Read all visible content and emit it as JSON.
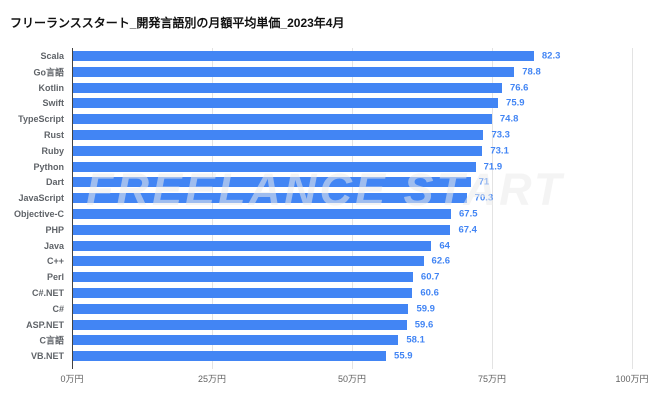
{
  "title": "フリーランススタート_開発言語別の月額平均単価_2023年4月",
  "watermark": "FREELANCE START",
  "colors": {
    "bar": "#4285f4",
    "value_label": "#4285f4",
    "category_label": "#5f6368",
    "tick_label": "#616161",
    "gridline": "#e3e3e3",
    "axis_line": "#424242",
    "title": "#111111",
    "watermark": "#ececec",
    "background": "#ffffff"
  },
  "chart_data": {
    "type": "bar",
    "orientation": "horizontal",
    "title": "フリーランススタート_開発言語別の月額平均単価_2023年4月",
    "xlabel": "",
    "ylabel": "",
    "unit": "万円",
    "xlim": [
      0,
      100
    ],
    "grid": true,
    "legend": "none",
    "categories": [
      "Scala",
      "Go言語",
      "Kotlin",
      "Swift",
      "TypeScript",
      "Rust",
      "Ruby",
      "Python",
      "Dart",
      "JavaScript",
      "Objective-C",
      "PHP",
      "Java",
      "C++",
      "Perl",
      "C#.NET",
      "C#",
      "ASP.NET",
      "C言語",
      "VB.NET"
    ],
    "values": [
      82.3,
      78.8,
      76.6,
      75.9,
      74.8,
      73.3,
      73.1,
      71.9,
      71,
      70.3,
      67.5,
      67.4,
      64,
      62.6,
      60.7,
      60.6,
      59.9,
      59.6,
      58.1,
      55.9
    ],
    "x_ticks": {
      "values": [
        0,
        25,
        50,
        75,
        100
      ],
      "labels": [
        "0万円",
        "25万円",
        "50万円",
        "75万円",
        "100万円"
      ]
    }
  }
}
